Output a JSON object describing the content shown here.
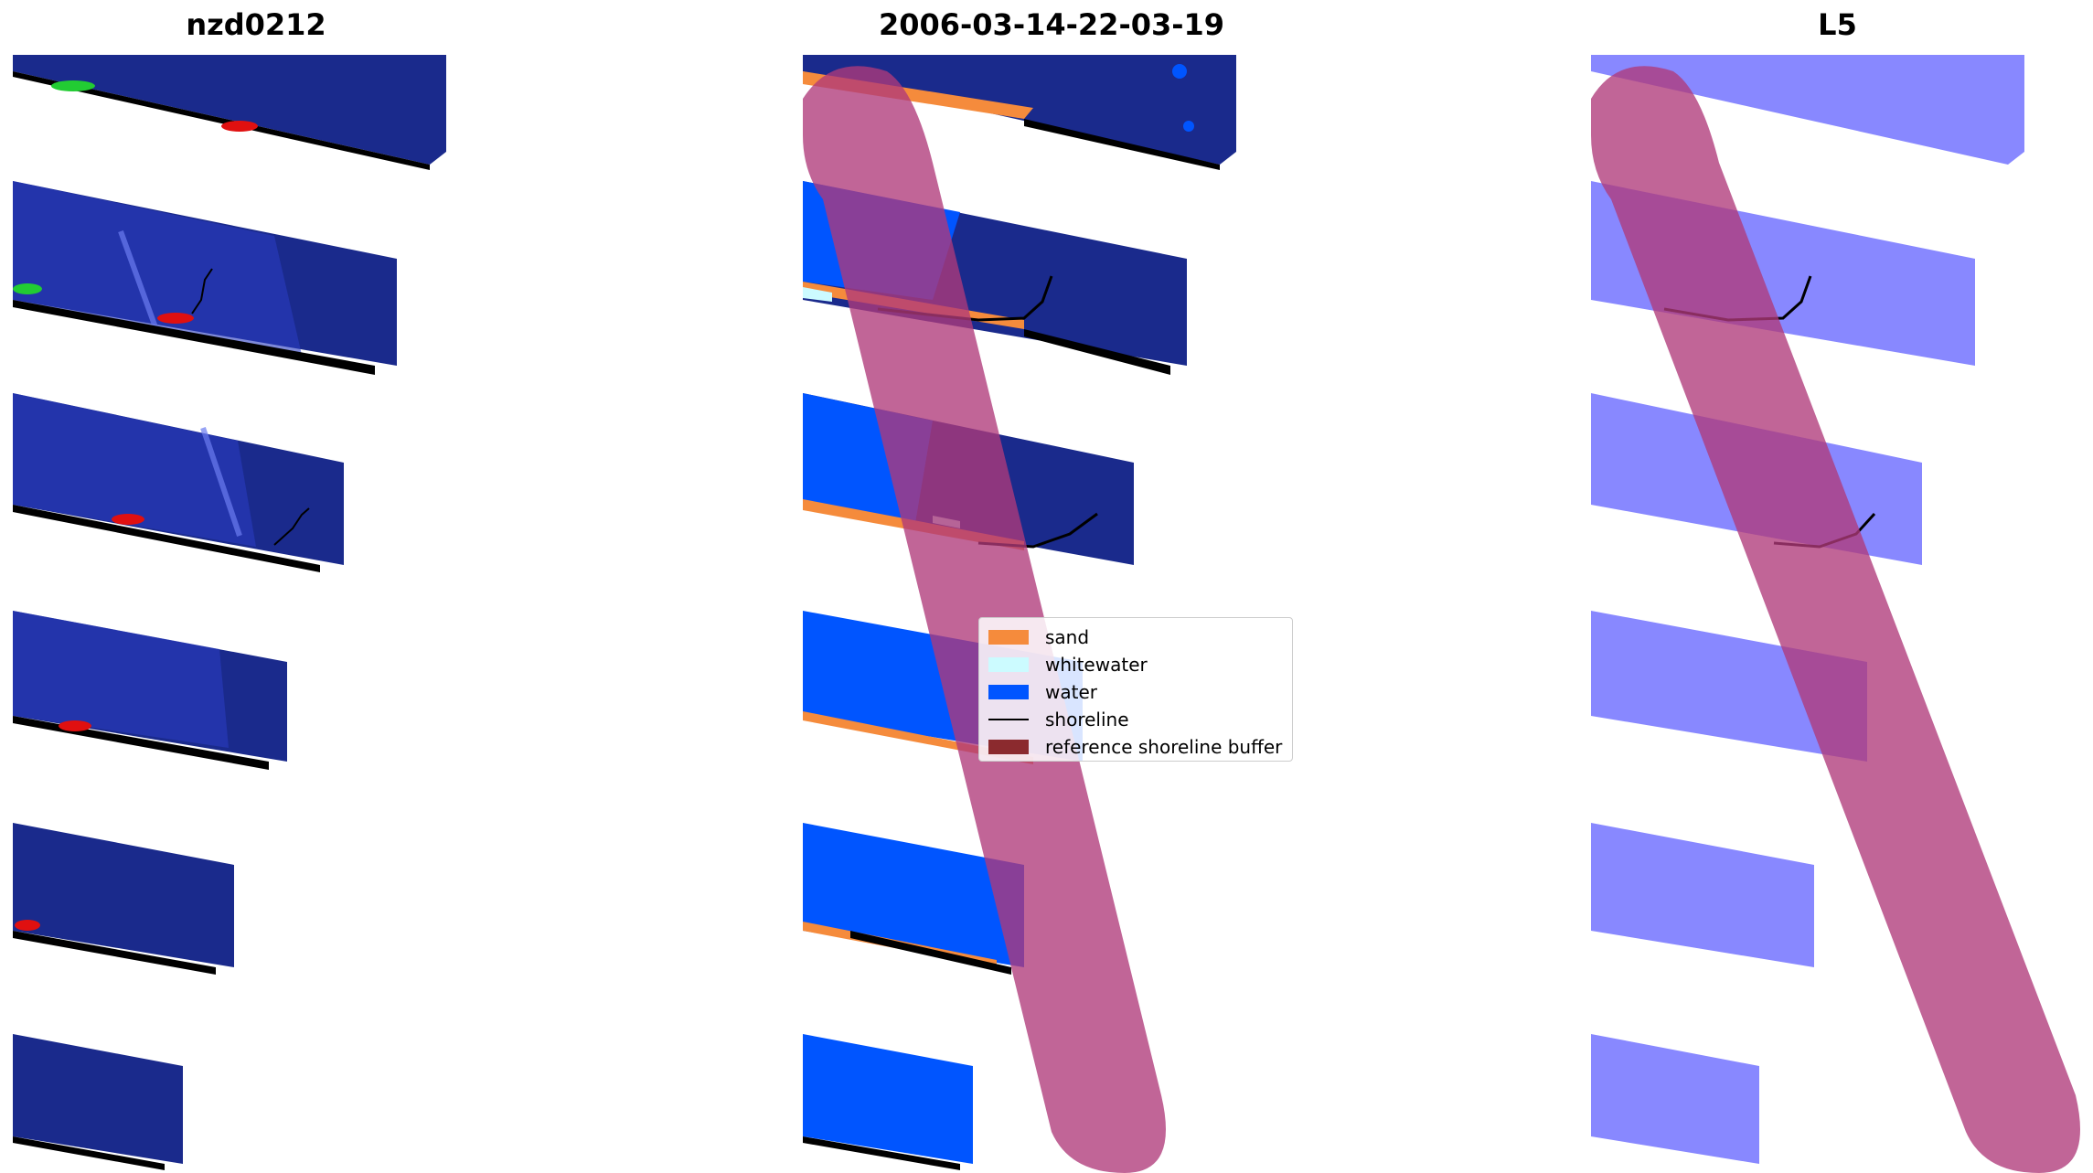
{
  "panels": {
    "left": {
      "title": "nzd0212"
    },
    "middle": {
      "title": "2006-03-14-22-03-19"
    },
    "right": {
      "title": "L5"
    }
  },
  "legend": {
    "items": [
      {
        "label": "sand",
        "color": "#f58b3c",
        "kind": "patch"
      },
      {
        "label": "whitewater",
        "color": "#ccfbff",
        "kind": "patch"
      },
      {
        "label": "water",
        "color": "#0055ff",
        "kind": "patch"
      },
      {
        "label": "shoreline",
        "color": "#000000",
        "kind": "line"
      },
      {
        "label": "reference shoreline buffer",
        "color": "#8b2a2e",
        "kind": "patch"
      }
    ]
  },
  "colors": {
    "rgb_blue": "#1a2a9a",
    "water": "#0055ff",
    "sand": "#f58b3c",
    "buffer": "#b03a7a",
    "l5_water": "#8888ff"
  }
}
